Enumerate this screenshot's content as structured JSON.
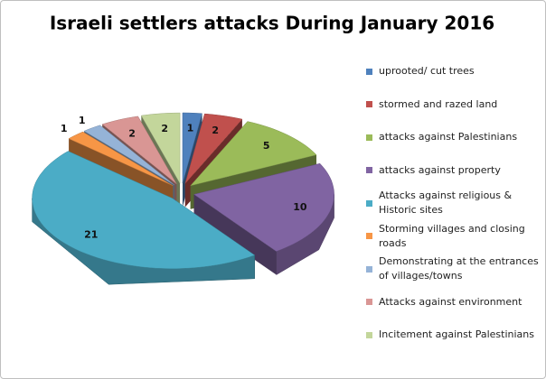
{
  "chart_data": {
    "type": "pie",
    "title": "Israeli settlers attacks During January 2016",
    "categories": [
      "uprooted/ cut trees",
      "stormed and razed land",
      "attacks against Palestinians",
      "attacks against property",
      "Attacks against religious & Historic sites",
      "Storming villages and closing roads",
      "Demonstrating at the entrances of villages/towns",
      "Attacks against environment",
      "Incitement against Palestinians"
    ],
    "values": [
      1,
      2,
      5,
      10,
      21,
      1,
      1,
      2,
      2
    ],
    "colors": [
      "#4f81bd",
      "#c0504d",
      "#9bbb59",
      "#8064a2",
      "#4bacc6",
      "#f79646",
      "#95b3d7",
      "#d99694",
      "#c3d69b"
    ],
    "legend": "right"
  }
}
